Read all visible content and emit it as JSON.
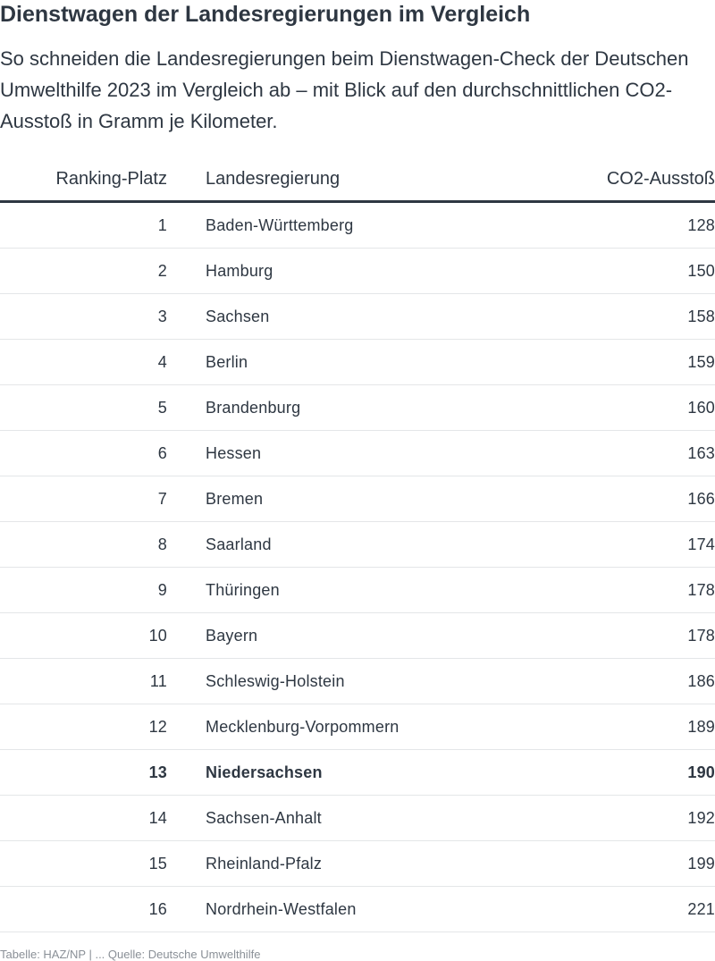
{
  "title": "Dienstwagen der Landesregierungen im Vergleich",
  "subtitle": "So schneiden die Landesregierungen beim Dienstwagen-Check der Deutschen Umwelthilfe 2023 im Vergleich ab – mit Blick auf den durchschnittlichen CO2-Ausstoß in Gramm je Kilometer.",
  "chart_data": {
    "type": "table",
    "columns": [
      "Ranking-Platz",
      "Landesregierung",
      "CO2-Ausstoß"
    ],
    "highlighted_row": "13",
    "rows": [
      [
        "1",
        "Baden-Württemberg",
        "128"
      ],
      [
        "2",
        "Hamburg",
        "150"
      ],
      [
        "3",
        "Sachsen",
        "158"
      ],
      [
        "4",
        "Berlin",
        "159"
      ],
      [
        "5",
        "Brandenburg",
        "160"
      ],
      [
        "6",
        "Hessen",
        "163"
      ],
      [
        "7",
        "Bremen",
        "166"
      ],
      [
        "8",
        "Saarland",
        "174"
      ],
      [
        "9",
        "Thüringen",
        "178"
      ],
      [
        "10",
        "Bayern",
        "178"
      ],
      [
        "11",
        "Schleswig-Holstein",
        "186"
      ],
      [
        "12",
        "Mecklenburg-Vorpommern",
        "189"
      ],
      [
        "13",
        "Niedersachsen",
        "190"
      ],
      [
        "14",
        "Sachsen-Anhalt",
        "192"
      ],
      [
        "15",
        "Rheinland-Pfalz",
        "199"
      ],
      [
        "16",
        "Nordrhein-Westfalen",
        "221"
      ]
    ]
  },
  "source": "Tabelle: HAZ/NP | ... Quelle: Deutsche Umwelthilfe",
  "colors": {
    "text": "#2e3742",
    "row_divider": "#e4e6e8",
    "header_rule": "#2e3742"
  }
}
